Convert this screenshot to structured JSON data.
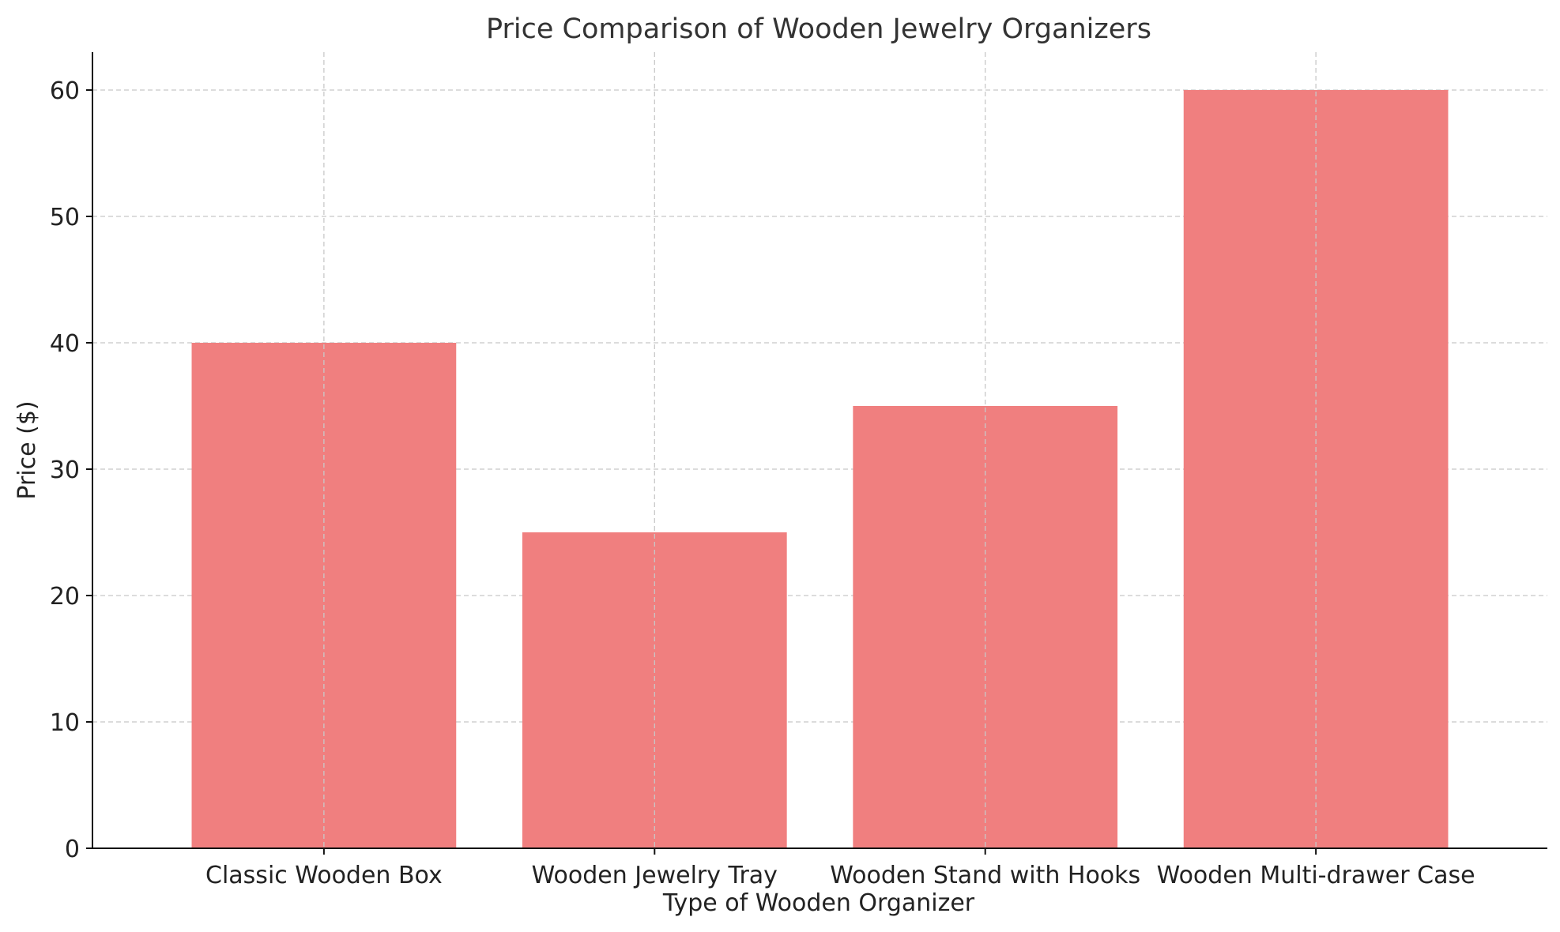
{
  "chart_data": {
    "type": "bar",
    "title": "Price Comparison of Wooden Jewelry Organizers",
    "xlabel": "Type of Wooden Organizer",
    "ylabel": "Price ($)",
    "categories": [
      "Classic Wooden Box",
      "Wooden Jewelry Tray",
      "Wooden Stand with Hooks",
      "Wooden Multi-drawer Case"
    ],
    "values": [
      40,
      25,
      35,
      60
    ],
    "ylim": [
      0,
      63
    ],
    "yticks": [
      0,
      10,
      20,
      30,
      40,
      50,
      60
    ],
    "grid": true,
    "bar_color": "#f07f7f"
  }
}
